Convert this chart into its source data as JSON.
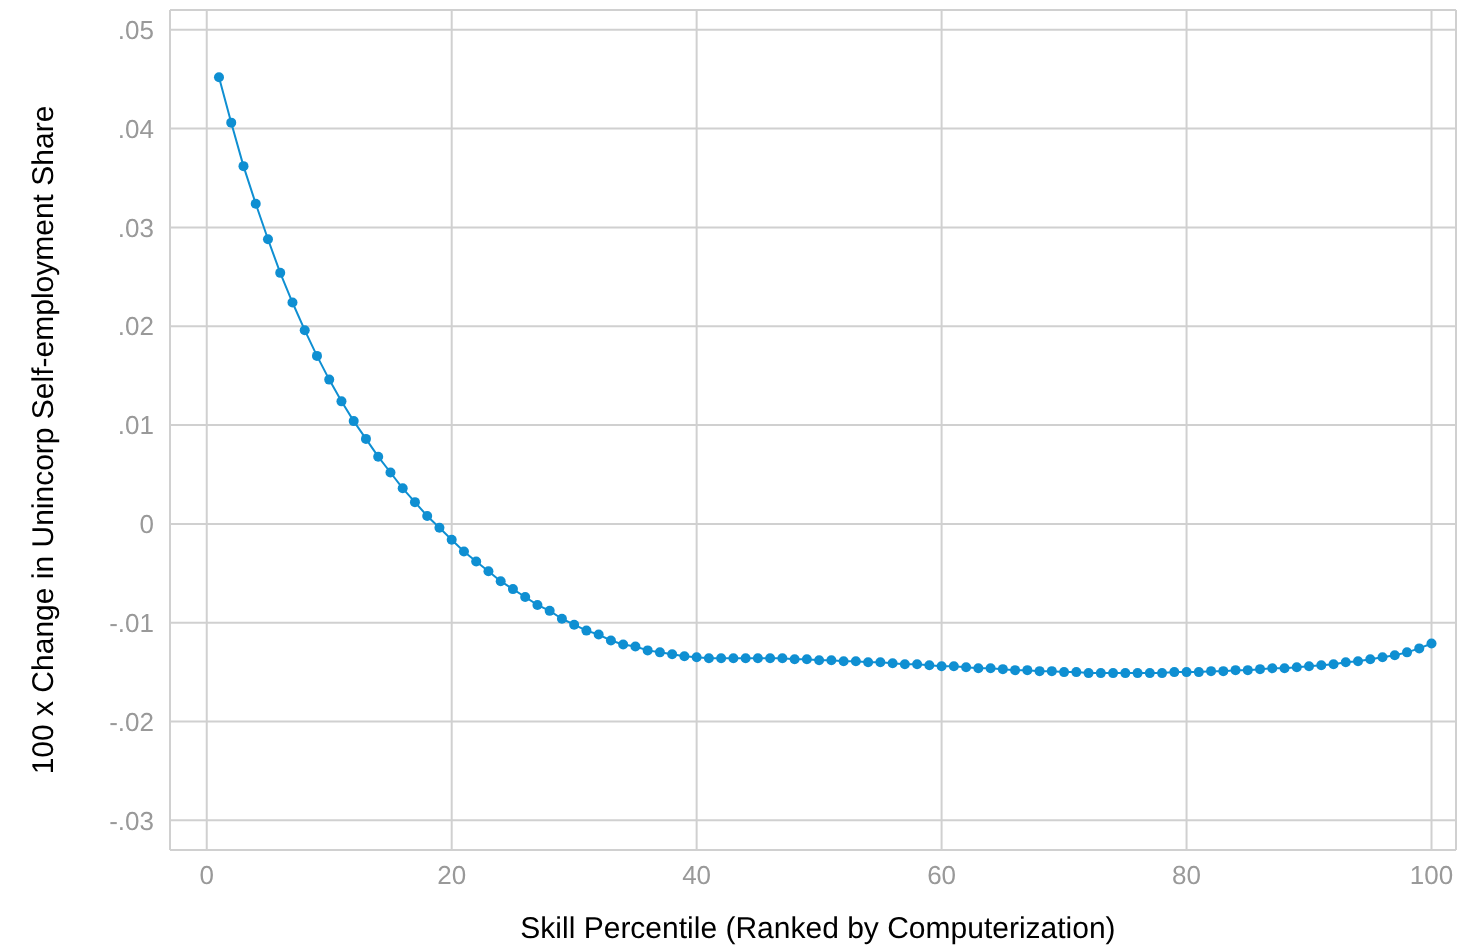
{
  "chart_data": {
    "type": "line",
    "xlabel": "Skill Percentile (Ranked by Computerization)",
    "ylabel": "100 x Change in Unincorp Self-employment Share",
    "x": [
      1,
      2,
      3,
      4,
      5,
      6,
      7,
      8,
      9,
      10,
      11,
      12,
      13,
      14,
      15,
      16,
      17,
      18,
      19,
      20,
      21,
      22,
      23,
      24,
      25,
      26,
      27,
      28,
      29,
      30,
      31,
      32,
      33,
      34,
      35,
      36,
      37,
      38,
      39,
      40,
      41,
      42,
      43,
      44,
      45,
      46,
      47,
      48,
      49,
      50,
      51,
      52,
      53,
      54,
      55,
      56,
      57,
      58,
      59,
      60,
      61,
      62,
      63,
      64,
      65,
      66,
      67,
      68,
      69,
      70,
      71,
      72,
      73,
      74,
      75,
      76,
      77,
      78,
      79,
      80,
      81,
      82,
      83,
      84,
      85,
      86,
      87,
      88,
      89,
      90,
      91,
      92,
      93,
      94,
      95,
      96,
      97,
      98,
      99,
      100
    ],
    "series": [
      {
        "color": "#0f8fd2",
        "values": [
          0.0452,
          0.0406,
          0.0362,
          0.0324,
          0.0288,
          0.0254,
          0.0224,
          0.0196,
          0.017,
          0.0146,
          0.0124,
          0.0104,
          0.0086,
          0.0068,
          0.0052,
          0.0036,
          0.0022,
          0.0008,
          -0.0004,
          -0.0016,
          -0.0028,
          -0.0038,
          -0.0048,
          -0.0058,
          -0.0066,
          -0.0074,
          -0.0082,
          -0.0088,
          -0.0096,
          -0.0102,
          -0.0108,
          -0.0112,
          -0.0118,
          -0.0122,
          -0.0124,
          -0.0128,
          -0.013,
          -0.0132,
          -0.0134,
          -0.0135,
          -0.0136,
          -0.0136,
          -0.0136,
          -0.0136,
          -0.0136,
          -0.0136,
          -0.0136,
          -0.0137,
          -0.0137,
          -0.0138,
          -0.0138,
          -0.0139,
          -0.0139,
          -0.014,
          -0.014,
          -0.0141,
          -0.0142,
          -0.0142,
          -0.0143,
          -0.0144,
          -0.0144,
          -0.0145,
          -0.0146,
          -0.0146,
          -0.0147,
          -0.0148,
          -0.0148,
          -0.0149,
          -0.0149,
          -0.015,
          -0.015,
          -0.0151,
          -0.0151,
          -0.0151,
          -0.0151,
          -0.0151,
          -0.0151,
          -0.0151,
          -0.015,
          -0.015,
          -0.015,
          -0.0149,
          -0.0149,
          -0.0148,
          -0.0148,
          -0.0147,
          -0.0146,
          -0.0146,
          -0.0145,
          -0.0144,
          -0.0143,
          -0.0142,
          -0.014,
          -0.0139,
          -0.0137,
          -0.0135,
          -0.0133,
          -0.013,
          -0.0126,
          -0.0121
        ]
      }
    ],
    "xlim": [
      -3,
      102
    ],
    "xticks": [
      0,
      20,
      40,
      60,
      80,
      100
    ],
    "ylim": [
      -0.033,
      0.052
    ],
    "yticks": [
      {
        "value": -0.03,
        "label": "-.03"
      },
      {
        "value": -0.02,
        "label": "-.02"
      },
      {
        "value": -0.01,
        "label": "-.01"
      },
      {
        "value": 0,
        "label": "0"
      },
      {
        "value": 0.01,
        "label": ".01"
      },
      {
        "value": 0.02,
        "label": ".02"
      },
      {
        "value": 0.03,
        "label": ".03"
      },
      {
        "value": 0.04,
        "label": ".04"
      },
      {
        "value": 0.05,
        "label": ".05"
      }
    ],
    "grid": true,
    "marker": "circle",
    "line_style": "solid"
  }
}
